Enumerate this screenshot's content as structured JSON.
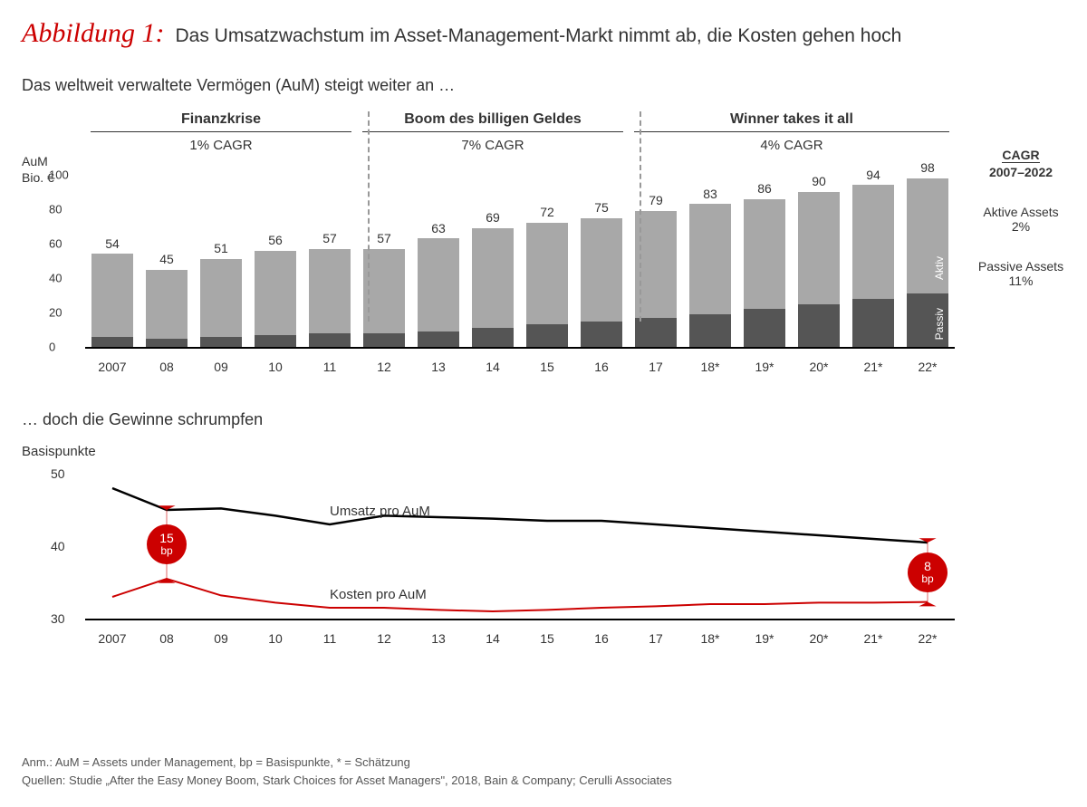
{
  "figure_label": "Abbildung 1:",
  "figure_title": "Das Umsatzwachstum im Asset-Management-Markt nimmt ab, die Kosten gehen hoch",
  "top_subtitle": "Das weltweit verwaltete Vermögen (AuM) steigt weiter an …",
  "y_axis_title_1": "AuM",
  "y_axis_title_2": "Bio. €",
  "phases": [
    {
      "title": "Finanzkrise",
      "cagr": "1% CAGR",
      "span": 5
    },
    {
      "title": "Boom des billigen Geldes",
      "cagr": "7% CAGR",
      "span": 5
    },
    {
      "title": "Winner takes it all",
      "cagr": "4% CAGR",
      "span": 6
    }
  ],
  "bar_chart": {
    "type": "stacked-bar",
    "ylim": [
      0,
      100
    ],
    "ytick_step": 20,
    "yticks": [
      0,
      20,
      40,
      60,
      80,
      100
    ],
    "categories": [
      "2007",
      "08",
      "09",
      "10",
      "11",
      "12",
      "13",
      "14",
      "15",
      "16",
      "17",
      "18*",
      "19*",
      "20*",
      "21*",
      "22*"
    ],
    "totals": [
      54,
      45,
      51,
      56,
      57,
      57,
      63,
      69,
      72,
      75,
      79,
      83,
      86,
      90,
      94,
      98
    ],
    "passive": [
      6,
      5,
      6,
      7,
      8,
      8,
      9,
      11,
      13,
      15,
      17,
      19,
      22,
      25,
      28,
      31
    ],
    "active": [
      48,
      40,
      45,
      49,
      49,
      49,
      54,
      58,
      59,
      60,
      62,
      64,
      64,
      65,
      66,
      67
    ],
    "colors": {
      "passive": "#555555",
      "active": "#a8a8a8"
    },
    "bar_inlabels": {
      "active": "Aktiv",
      "passive": "Passiv"
    },
    "dividers_after_index": [
      4.7,
      9.7
    ]
  },
  "right_panel": {
    "cagr_header": "CAGR",
    "period": "2007–2022",
    "active_label": "Aktive Assets",
    "active_value": "2%",
    "passive_label": "Passive Assets",
    "passive_value": "11%"
  },
  "line_section": {
    "subtitle": "… doch die Gewinne schrumpfen",
    "y_label": "Basispunkte",
    "ylim": [
      30,
      50
    ],
    "yticks": [
      30,
      40,
      50
    ],
    "categories": [
      "2007",
      "08",
      "09",
      "10",
      "11",
      "12",
      "13",
      "14",
      "15",
      "16",
      "17",
      "18*",
      "19*",
      "20*",
      "21*",
      "22*"
    ],
    "series": {
      "revenue": {
        "label": "Umsatz pro AuM",
        "color": "#000000",
        "width": 2.5,
        "values": [
          48,
          45,
          45.2,
          44.2,
          43,
          44.2,
          44,
          43.8,
          43.5,
          43.5,
          43,
          42.5,
          42,
          41.5,
          41,
          40.5
        ]
      },
      "cost": {
        "label": "Kosten pro AuM",
        "color": "#cc0000",
        "width": 2,
        "values": [
          33,
          35.5,
          33.2,
          32.2,
          31.5,
          31.5,
          31.2,
          31,
          31.2,
          31.5,
          31.7,
          32,
          32,
          32.2,
          32.2,
          32.3
        ]
      }
    },
    "badges": {
      "left": {
        "value": "15",
        "unit": "bp",
        "x_index": 1
      },
      "right": {
        "value": "8",
        "unit": "bp",
        "x_index": 15
      }
    }
  },
  "footer_note": "Anm.: AuM = Assets under Management, bp = Basispunkte, * =  Schätzung",
  "footer_source": "Quellen: Studie „After the Easy Money Boom, Stark Choices for Asset Managers\", 2018, Bain & Company; Cerulli Associates"
}
